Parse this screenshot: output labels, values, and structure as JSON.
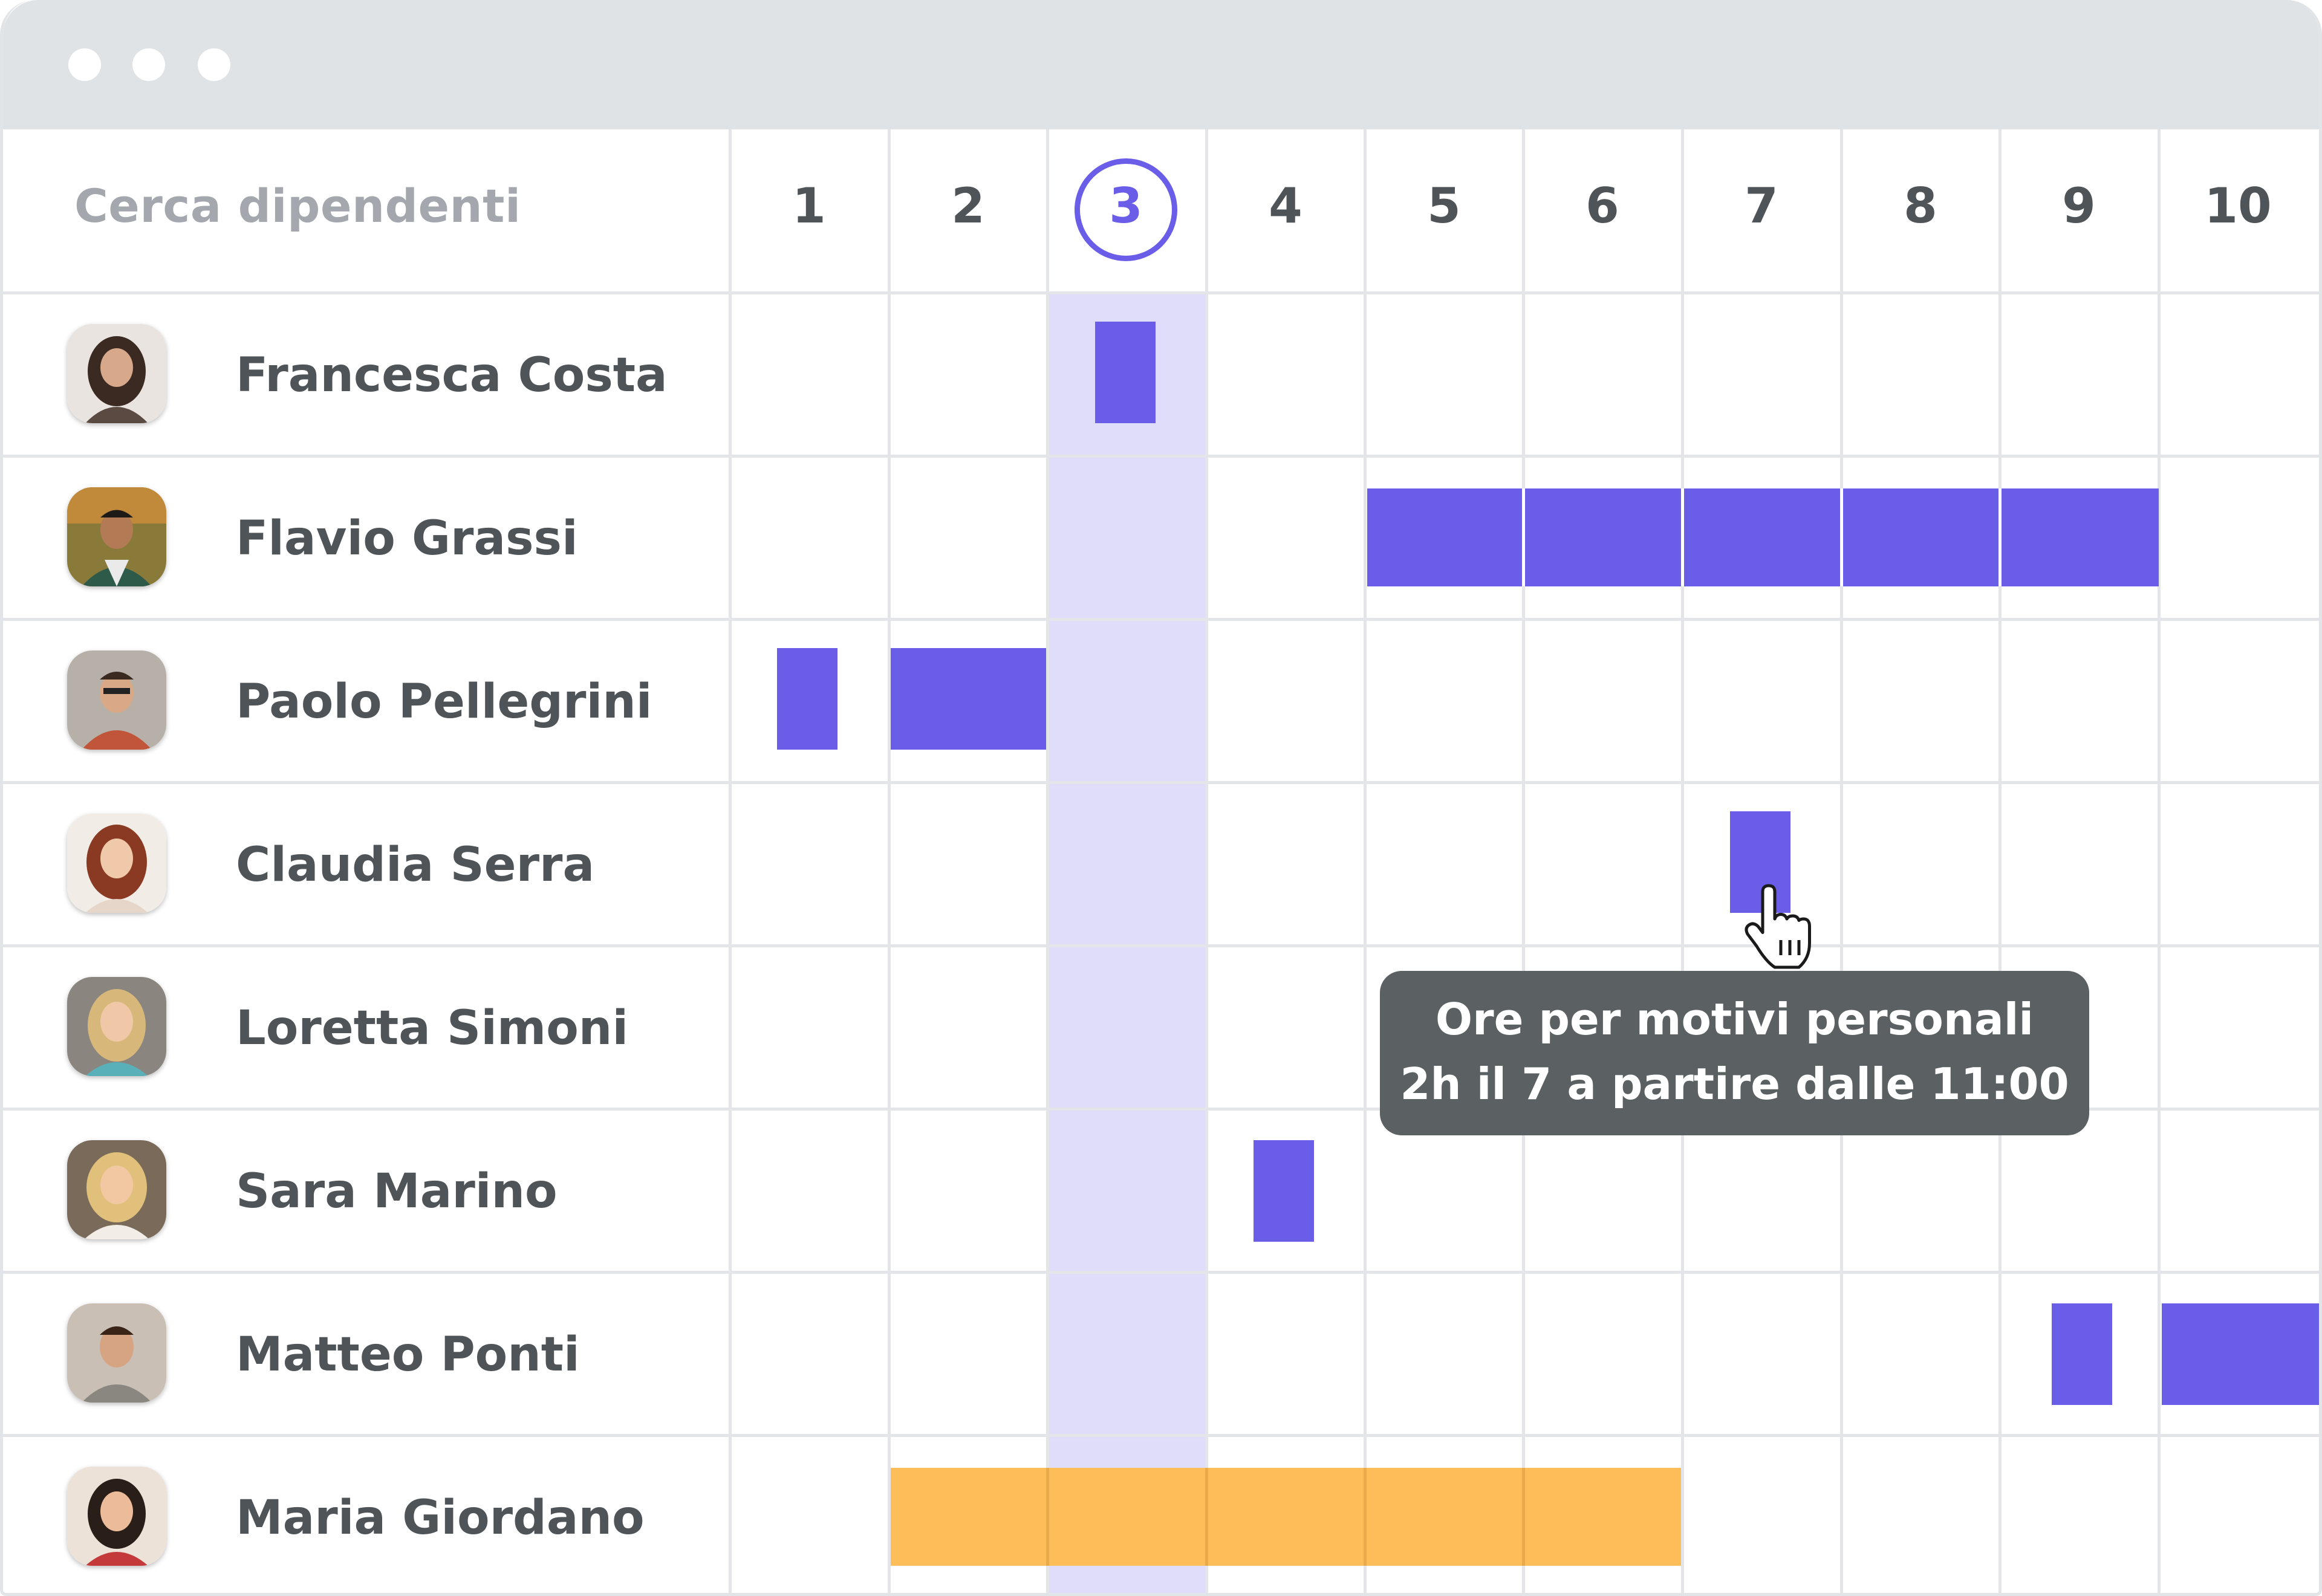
{
  "window": {
    "title_dots": [
      "close",
      "minimize",
      "maximize"
    ]
  },
  "search": {
    "placeholder": "Cerca dipendenti"
  },
  "days": [
    "1",
    "2",
    "3",
    "4",
    "5",
    "6",
    "7",
    "8",
    "9",
    "10"
  ],
  "today": "3",
  "employees": [
    {
      "name": "Francesca Costa",
      "avatar": "avatar-photo"
    },
    {
      "name": "Flavio Grassi",
      "avatar": "avatar-photo"
    },
    {
      "name": "Paolo Pellegrini",
      "avatar": "avatar-photo"
    },
    {
      "name": "Claudia Serra",
      "avatar": "avatar-photo"
    },
    {
      "name": "Loretta Simoni",
      "avatar": "avatar-photo"
    },
    {
      "name": "Sara Marino",
      "avatar": "avatar-photo"
    },
    {
      "name": "Matteo Ponti",
      "avatar": "avatar-photo"
    },
    {
      "name": "Maria Giordano",
      "avatar": "avatar-photo"
    }
  ],
  "tooltip": {
    "line1": "Ore per motivi personali",
    "line2": "2h il 7 a partire dalle 11:00"
  },
  "colors": {
    "accent": "#6a5ee8",
    "today_column": "#e0ddfb",
    "vacation": "#fdbd58",
    "tooltip_bg": "#5b6063",
    "text": "#4f5458",
    "placeholder": "#a4a8ae"
  }
}
